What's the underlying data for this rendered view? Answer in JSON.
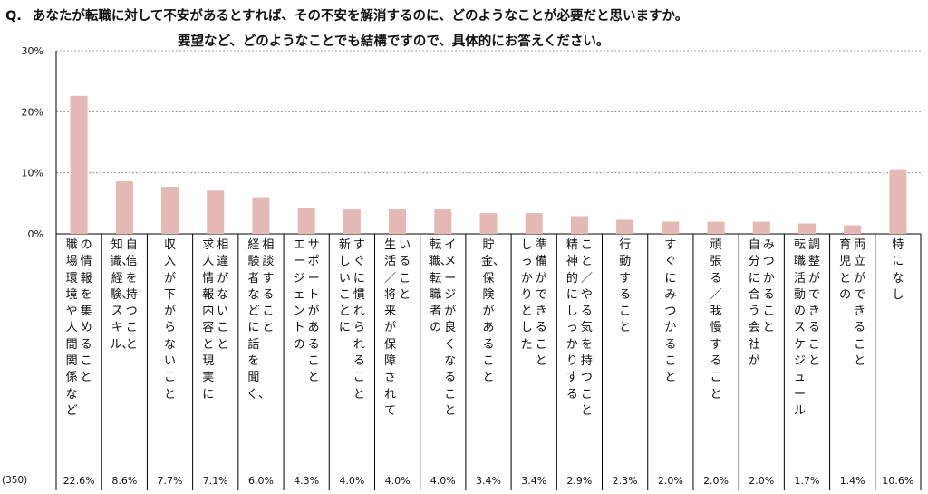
{
  "question": {
    "prefix": "Q.",
    "line1": "あなたが転職に対して不安があるとすれば、その不安を解消するのに、どのようなことが必要だと思いますか。",
    "line2": "要望など、どのようなことでも結構ですので、具体的にお答えください。"
  },
  "n_label": "(350)",
  "colors": {
    "bar": "#e3b8b5",
    "axis": "#000000",
    "grid": "#888888"
  },
  "chart_data": {
    "type": "bar",
    "ylim": [
      0,
      30
    ],
    "yticks": [
      "0%",
      "10%",
      "20%",
      "30%"
    ],
    "grid": true,
    "categories": [
      {
        "col1": "職場環境や人間関係など",
        "col2": "の情報を集めること"
      },
      {
        "col1": "知識、経験、スキル、",
        "col2": "自信を持つこと"
      },
      {
        "col1": "収入が下がらないこと",
        "col2": ""
      },
      {
        "col1": "求人情報内容と現実に",
        "col2": "相違がないこと"
      },
      {
        "col1": "経験者などに話を聞く、",
        "col2": "相談すること"
      },
      {
        "col1": "エージェントの",
        "col2": "サポートがあること"
      },
      {
        "col1": "新しいことに",
        "col2": "すぐに慣れられること"
      },
      {
        "col1": "生活／将来が保障されて",
        "col2": "いること"
      },
      {
        "col1": "転職、転職者の",
        "col2": "イメージが良くなること"
      },
      {
        "col1": "貯金、保険があること",
        "col2": ""
      },
      {
        "col1": "しっかりとした",
        "col2": "準備ができること"
      },
      {
        "col1": "精神的にしっかりする",
        "col2": "こと／やる気を持つこと"
      },
      {
        "col1": "行動すること",
        "col2": ""
      },
      {
        "col1": "すぐにみつかること",
        "col2": ""
      },
      {
        "col1": "頑張る／我慢すること",
        "col2": ""
      },
      {
        "col1": "自分に合う会社が",
        "col2": "みつかること"
      },
      {
        "col1": "転職活動のスケジュール",
        "col2": "調整ができること"
      },
      {
        "col1": "育児との",
        "col2": "両立ができること"
      },
      {
        "col1": "特になし",
        "col2": ""
      }
    ],
    "values": [
      22.6,
      8.6,
      7.7,
      7.1,
      6.0,
      4.3,
      4.0,
      4.0,
      4.0,
      3.4,
      3.4,
      2.9,
      2.3,
      2.0,
      2.0,
      2.0,
      1.7,
      1.4,
      10.6
    ],
    "value_labels": [
      "22.6%",
      "8.6%",
      "7.7%",
      "7.1%",
      "6.0%",
      "4.3%",
      "4.0%",
      "4.0%",
      "4.0%",
      "3.4%",
      "3.4%",
      "2.9%",
      "2.3%",
      "2.0%",
      "2.0%",
      "2.0%",
      "1.7%",
      "1.4%",
      "10.6%"
    ]
  }
}
